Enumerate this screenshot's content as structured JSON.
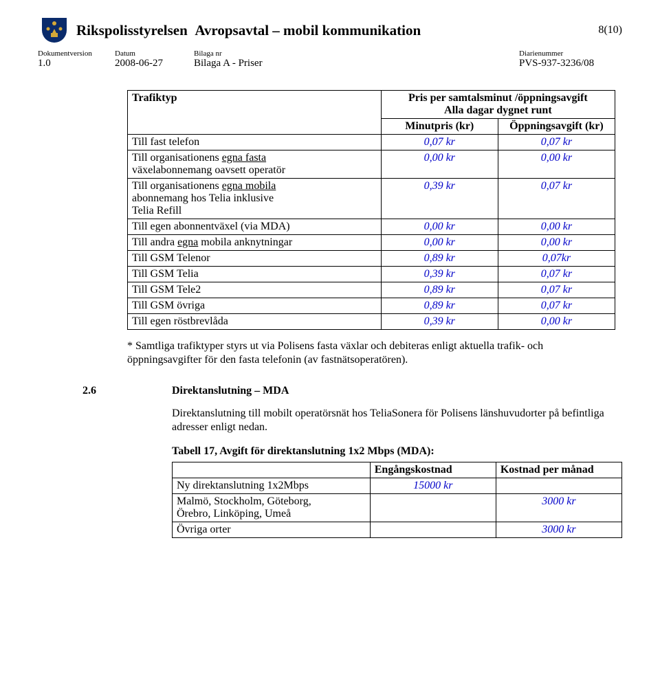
{
  "header": {
    "org": "Rikspolisstyrelsen",
    "title": "Avropsavtal – mobil kommunikation",
    "page_num": "8(10)"
  },
  "meta": {
    "labels": {
      "version": "Dokumentversion",
      "date": "Datum",
      "attachment": "Bilaga nr",
      "diary": "Diarienummer"
    },
    "version": "1.0",
    "date": "2008-06-27",
    "attachment": "Bilaga A - Priser",
    "diary": "PVS-937-3236/08"
  },
  "tariff_table": {
    "header_col1": "Trafiktyp",
    "header_main": "Pris per samtalsminut /öppningsavgift\nAlla dagar dygnet runt",
    "header_sub1": "Minutpris (kr)",
    "header_sub2": "Öppningsavgift (kr)",
    "rows": [
      {
        "label": "Till fast telefon",
        "underline": "",
        "v1": "0,07 kr",
        "v2": "0,07 kr"
      },
      {
        "label": "Till organisationens ",
        "underline": "egna fasta",
        "label2": "\nväxelabonnemang oavsett operatör",
        "v1": "0,00 kr",
        "v2": "0,00 kr"
      },
      {
        "label": "Till organisationens ",
        "underline": "egna mobila",
        "label2": "\nabonnemang hos Telia inklusive\nTelia Refill",
        "v1": "0,39 kr",
        "v2": "0,07 kr"
      },
      {
        "label": "Till egen abonnentväxel (via MDA)",
        "v1": "0,00 kr",
        "v2": "0,00 kr"
      },
      {
        "label": "Till andra ",
        "underline": "egna",
        "label2": " mobila anknytningar",
        "v1": "0,00 kr",
        "v2": "0,00 kr"
      },
      {
        "label": "Till GSM Telenor",
        "v1": "0,89 kr",
        "v2": "0,07kr"
      },
      {
        "label": "Till GSM Telia",
        "v1": "0,39 kr",
        "v2": "0,07 kr"
      },
      {
        "label": "Till GSM Tele2",
        "v1": "0,89 kr",
        "v2": "0,07 kr"
      },
      {
        "label": "Till GSM övriga",
        "v1": "0,89 kr",
        "v2": "0,07 kr"
      },
      {
        "label": "Till egen röstbrevlåda",
        "v1": "0,39 kr",
        "v2": "0,00 kr"
      }
    ]
  },
  "footnote": "* Samtliga trafiktyper styrs ut via Polisens fasta växlar och debiteras enligt aktuella trafik- och öppningsavgifter för den fasta telefonin (av fastnätsoperatören).",
  "section": {
    "num": "2.6",
    "heading": "Direktanslutning – MDA",
    "para": "Direktanslutning till mobilt operatörsnät hos TeliaSonera för Polisens länshuvudorter på befintliga adresser enligt nedan.",
    "table_caption": "Tabell 17, Avgift för direktanslutning 1x2 Mbps (MDA):"
  },
  "cost_table": {
    "h1": "",
    "h2": "Engångskostnad",
    "h3": "Kostnad per månad",
    "rows": [
      {
        "c1": "Ny direktanslutning 1x2Mbps",
        "c2": "15000 kr",
        "c3": ""
      },
      {
        "c1": "Malmö, Stockholm, Göteborg,\nÖrebro, Linköping, Umeå",
        "c2": "",
        "c3": "3000 kr"
      },
      {
        "c1": "Övriga orter",
        "c2": "",
        "c3": "3000 kr"
      }
    ]
  },
  "colors": {
    "value_blue": "#0000c8",
    "emblem_blue": "#0a2b6b",
    "emblem_gold": "#d4a838"
  }
}
